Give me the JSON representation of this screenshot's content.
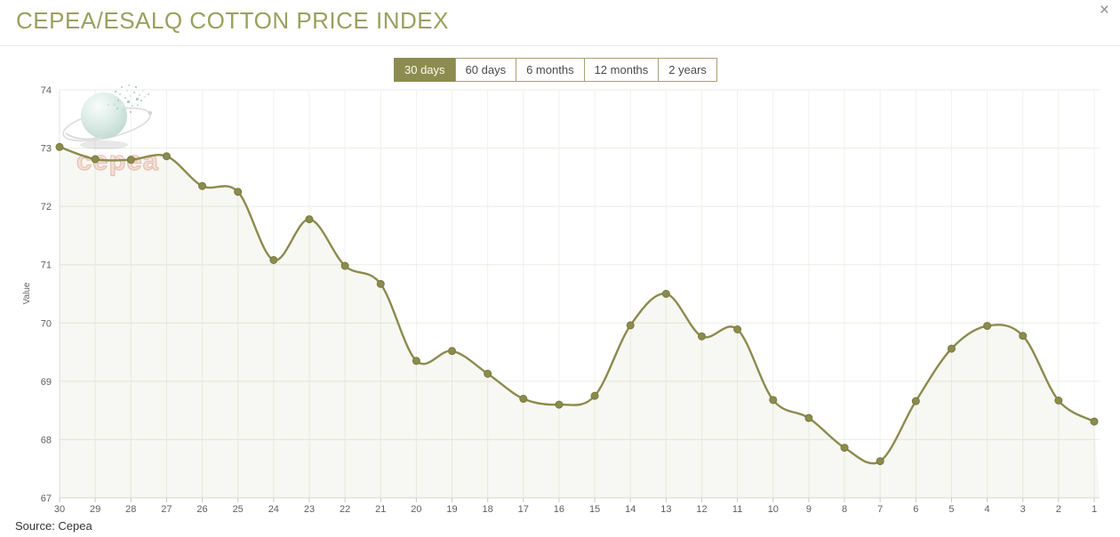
{
  "window": {
    "close_icon": "×"
  },
  "header": {
    "title": "CEPEA/ESALQ COTTON PRICE INDEX"
  },
  "range_tabs": {
    "items": [
      {
        "label": "30 days",
        "active": true
      },
      {
        "label": "60 days",
        "active": false
      },
      {
        "label": "6 months",
        "active": false
      },
      {
        "label": "12 months",
        "active": false
      },
      {
        "label": "2 years",
        "active": false
      }
    ]
  },
  "chart_data": {
    "type": "area",
    "title": "",
    "xlabel": "",
    "ylabel": "Value",
    "x": [
      30,
      29,
      28,
      27,
      26,
      25,
      24,
      23,
      22,
      21,
      20,
      19,
      18,
      17,
      16,
      15,
      14,
      13,
      12,
      11,
      10,
      9,
      8,
      7,
      6,
      5,
      4,
      3,
      2,
      1
    ],
    "values": [
      73.02,
      72.81,
      72.8,
      72.86,
      72.35,
      72.25,
      71.08,
      71.78,
      70.98,
      70.67,
      69.35,
      69.52,
      69.13,
      68.7,
      68.6,
      68.75,
      69.96,
      70.5,
      69.77,
      69.89,
      68.68,
      68.37,
      67.86,
      67.63,
      68.66,
      69.56,
      69.95,
      69.78,
      68.67,
      68.31
    ],
    "ylim": [
      67,
      74
    ],
    "yticks": [
      67,
      68,
      69,
      70,
      71,
      72,
      73,
      74
    ],
    "grid": true,
    "legend": "none",
    "line_color": "#8b8b4e",
    "marker_color": "#8b8b4e",
    "marker_edge_color": "#79793f",
    "fill_color": "rgba(139,139,78,0.07)",
    "tick_label_color": "#606060",
    "axis_label_color": "#666666"
  },
  "watermark": {
    "text": "cepea",
    "text_color": "#e2967e"
  },
  "footer": {
    "source": "Source: Cepea"
  }
}
